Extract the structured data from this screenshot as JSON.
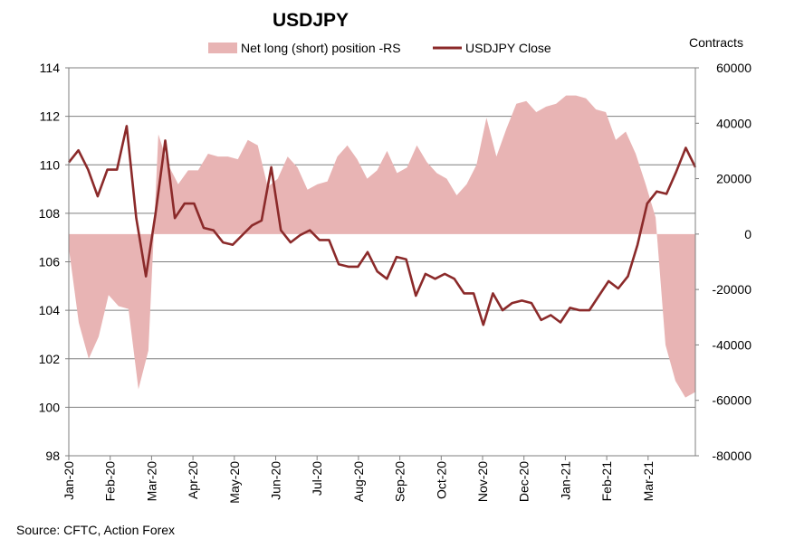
{
  "chart_data": {
    "type": "line",
    "title": "USDJPY",
    "right_axis_label": "Contracts",
    "source": "Source: CFTC, Action Forex",
    "legend": {
      "placement": "top",
      "area_label": "Net long (short) position -RS",
      "line_label": "USDJPY Close"
    },
    "left_axis": {
      "ylim": [
        98,
        114
      ],
      "ticks": [
        "114",
        "112",
        "110",
        "108",
        "106",
        "104",
        "102",
        "100",
        "98"
      ]
    },
    "right_axis": {
      "ylim": [
        -80000,
        60000
      ],
      "ticks": [
        "60000",
        "40000",
        "20000",
        "0",
        "-20000",
        "-40000",
        "-60000",
        "-80000"
      ]
    },
    "x_tick_labels": [
      "Jan-20",
      "Feb-20",
      "Mar-20",
      "Apr-20",
      "May-20",
      "Jun-20",
      "Jul-20",
      "Aug-20",
      "Sep-20",
      "Oct-20",
      "Nov-20",
      "Dec-20",
      "Jan-21",
      "Feb-21",
      "Mar-21"
    ],
    "grid": true,
    "colors": {
      "area": "#e8b4b4",
      "line": "#8b2a2a",
      "grid": "#7f7f7f",
      "axis": "#7f7f7f"
    },
    "series": [
      {
        "name": "Net long (short) position -RS",
        "kind": "area",
        "axis": "right",
        "values": [
          -5000,
          -32000,
          -45000,
          -37000,
          -22000,
          -26000,
          -27000,
          -56000,
          -42000,
          36000,
          25000,
          18000,
          23000,
          23000,
          29000,
          28000,
          28000,
          27000,
          34000,
          32000,
          17000,
          20000,
          28000,
          24000,
          16000,
          18000,
          19000,
          28000,
          32000,
          27000,
          20000,
          23000,
          30000,
          22000,
          24000,
          32000,
          26000,
          22000,
          20000,
          14000,
          18000,
          25000,
          42000,
          28000,
          38000,
          47000,
          48000,
          44000,
          46000,
          47000,
          50000,
          50000,
          49000,
          45000,
          44000,
          34000,
          37000,
          29000,
          18000,
          6000,
          -40000,
          -53000,
          -59000,
          -57000
        ]
      },
      {
        "name": "USDJPY Close",
        "kind": "line",
        "axis": "left",
        "values": [
          110.1,
          110.6,
          109.8,
          108.7,
          109.8,
          109.8,
          111.6,
          107.8,
          105.4,
          108.0,
          111.0,
          107.8,
          108.4,
          108.4,
          107.4,
          107.3,
          106.8,
          106.7,
          107.1,
          107.5,
          107.7,
          109.9,
          107.3,
          106.8,
          107.1,
          107.3,
          106.9,
          106.9,
          105.9,
          105.8,
          105.8,
          106.4,
          105.6,
          105.3,
          106.2,
          106.1,
          104.6,
          105.5,
          105.3,
          105.5,
          105.3,
          104.7,
          104.7,
          103.4,
          104.7,
          104.0,
          104.3,
          104.4,
          104.3,
          103.6,
          103.8,
          103.5,
          104.1,
          104.0,
          104.0,
          104.6,
          105.2,
          104.9,
          105.4,
          106.7,
          108.4,
          108.9,
          108.8,
          109.7,
          110.7,
          109.9
        ]
      }
    ]
  }
}
